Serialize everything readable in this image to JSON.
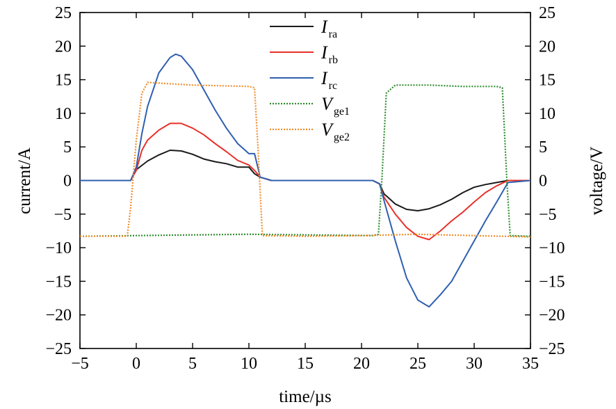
{
  "chart_data": {
    "type": "line",
    "xlabel": "time/µs",
    "ylabel_left": "current/A",
    "ylabel_right": "voltage/V",
    "xlim": [
      -5,
      35
    ],
    "ylim_left": [
      -25,
      25
    ],
    "ylim_right": [
      -25,
      25
    ],
    "xticks": [
      "−5",
      "0",
      "5",
      "10",
      "15",
      "20",
      "25",
      "30",
      "35"
    ],
    "xtick_values": [
      -5,
      0,
      5,
      10,
      15,
      20,
      25,
      30,
      35
    ],
    "yticks": [
      "25",
      "20",
      "15",
      "10",
      "5",
      "0",
      "−5",
      "−10",
      "−15",
      "−20",
      "−25"
    ],
    "ytick_values": [
      25,
      20,
      15,
      10,
      5,
      0,
      -5,
      -10,
      -15,
      -20,
      -25
    ],
    "grid": false,
    "legend_position": "top-center",
    "series": [
      {
        "name": "I_ra",
        "label_main": "I",
        "label_sub": "ra",
        "color": "#1a1a1a",
        "dash": "solid",
        "axis": "left",
        "x": [
          -5,
          -0.5,
          0,
          1,
          2,
          3,
          4,
          5,
          6,
          7,
          8,
          9,
          10,
          10.5,
          11,
          12,
          15,
          18,
          21,
          21.6,
          22,
          23,
          24,
          25,
          26,
          27,
          28,
          29,
          30,
          31,
          32,
          33,
          35
        ],
        "y": [
          0,
          0,
          1.6,
          2.9,
          3.8,
          4.5,
          4.4,
          3.9,
          3.2,
          2.8,
          2.5,
          2.0,
          2.0,
          1.0,
          0.5,
          0,
          0,
          0,
          0,
          -0.5,
          -2.0,
          -3.5,
          -4.3,
          -4.5,
          -4.2,
          -3.6,
          -2.8,
          -1.8,
          -1.0,
          -0.6,
          -0.3,
          0,
          0
        ]
      },
      {
        "name": "I_rb",
        "label_main": "I",
        "label_sub": "rb",
        "color": "#e8302a",
        "dash": "solid",
        "axis": "left",
        "x": [
          -5,
          -0.5,
          0,
          0.5,
          1,
          2,
          3,
          4,
          5,
          6,
          7,
          8,
          9,
          10,
          10.5,
          11,
          12,
          15,
          18,
          21,
          21.6,
          22,
          23,
          24,
          25,
          26,
          27,
          28,
          29,
          30,
          31,
          32,
          33,
          35
        ],
        "y": [
          0,
          0,
          1.5,
          4.5,
          6.0,
          7.5,
          8.5,
          8.5,
          7.8,
          6.8,
          5.5,
          4.3,
          3.0,
          2.3,
          1.5,
          0.5,
          0,
          0,
          0,
          0,
          -0.5,
          -2.5,
          -5.0,
          -7.0,
          -8.3,
          -8.8,
          -7.5,
          -6.0,
          -4.7,
          -3.2,
          -1.8,
          -0.8,
          0,
          0
        ]
      },
      {
        "name": "I_rc",
        "label_main": "I",
        "label_sub": "rc",
        "color": "#2f5fb0",
        "dash": "solid",
        "axis": "left",
        "x": [
          -5,
          -0.5,
          0,
          0.5,
          1,
          2,
          3,
          3.5,
          4,
          5,
          6,
          7,
          8,
          9,
          10,
          10.5,
          11,
          12,
          15,
          18,
          21,
          21.6,
          22,
          23,
          24,
          25,
          26,
          27,
          28,
          29,
          30,
          31,
          32,
          33,
          35
        ],
        "y": [
          0,
          0,
          2.0,
          7.0,
          11.0,
          16.0,
          18.3,
          18.8,
          18.5,
          16.5,
          13.5,
          10.5,
          7.8,
          5.5,
          4.0,
          4.0,
          0.5,
          0,
          0,
          0,
          0,
          -0.5,
          -3.0,
          -9.0,
          -14.5,
          -17.8,
          -18.8,
          -17.0,
          -15.0,
          -12.0,
          -9.0,
          -6.0,
          -3.2,
          -0.3,
          0
        ]
      },
      {
        "name": "V_ge1",
        "label_main": "V",
        "label_sub": "ge1",
        "color": "#2e8b2e",
        "dash": "2,2",
        "axis": "right",
        "x": [
          -5,
          0,
          5,
          10,
          15,
          21,
          21.5,
          21.8,
          22.2,
          23,
          26,
          29,
          32,
          32.5,
          32.9,
          33.2,
          35
        ],
        "y": [
          -8.3,
          -8.2,
          -8.1,
          -8.0,
          -8.1,
          -8.2,
          -8.0,
          0,
          13.0,
          14.2,
          14.2,
          14.0,
          14.0,
          13.8,
          0,
          -8.2,
          -8.3
        ]
      },
      {
        "name": "V_ge2",
        "label_main": "V",
        "label_sub": "ge2",
        "color": "#f08c2a",
        "dash": "2,2",
        "axis": "right",
        "x": [
          -5,
          -0.8,
          -0.5,
          0,
          0.5,
          1,
          5,
          10,
          10.5,
          10.8,
          11.2,
          15,
          20,
          25,
          30,
          35
        ],
        "y": [
          -8.3,
          -8.3,
          -4.0,
          6.0,
          13.0,
          14.6,
          14.2,
          14.0,
          13.8,
          5.0,
          -8.2,
          -8.3,
          -8.2,
          -8.0,
          -8.2,
          -8.4
        ]
      }
    ]
  }
}
